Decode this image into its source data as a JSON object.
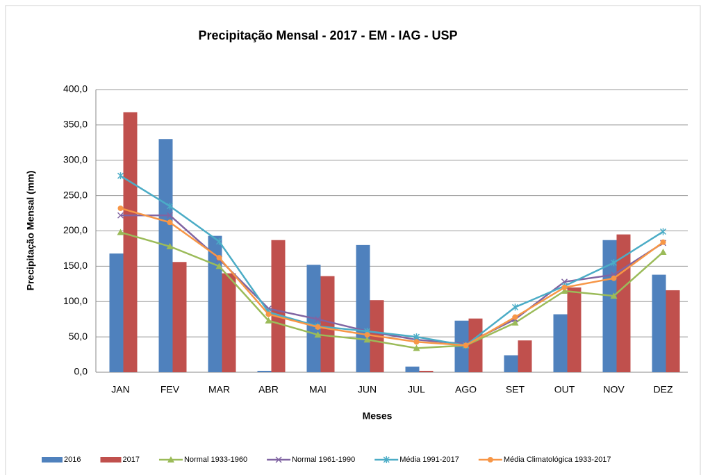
{
  "chart_data": {
    "type": "bar",
    "title": "Precipitação Mensal - 2017 - EM - IAG - USP",
    "x_label": "Meses",
    "y_label": "Precipitação Mensal (mm)",
    "categories": [
      "JAN",
      "FEV",
      "MAR",
      "ABR",
      "MAI",
      "JUN",
      "JUL",
      "AGO",
      "SET",
      "OUT",
      "NOV",
      "DEZ"
    ],
    "series": [
      {
        "name": "2016",
        "type": "bar",
        "color": "#4f81bd",
        "values": [
          168,
          330,
          193,
          2,
          152,
          180,
          8,
          73,
          24,
          82,
          187,
          138
        ]
      },
      {
        "name": "2017",
        "type": "bar",
        "color": "#c0504d",
        "values": [
          368,
          156,
          140,
          187,
          136,
          102,
          2,
          76,
          45,
          120,
          195,
          116
        ]
      },
      {
        "name": "Normal 1933-1960",
        "type": "line",
        "marker": "triangle",
        "color": "#9bbb59",
        "values": [
          198,
          178,
          150,
          73,
          53,
          46,
          34,
          38,
          70,
          115,
          108,
          170
        ]
      },
      {
        "name": "Normal 1961-1990",
        "type": "line",
        "marker": "x",
        "color": "#8064a2",
        "values": [
          222,
          222,
          160,
          90,
          75,
          58,
          46,
          40,
          75,
          128,
          138,
          183
        ]
      },
      {
        "name": "Média 1991-2017",
        "type": "line",
        "marker": "star",
        "color": "#4bacc6",
        "values": [
          278,
          235,
          185,
          85,
          65,
          58,
          50,
          38,
          92,
          122,
          155,
          199
        ]
      },
      {
        "name": "Média Climatológica 1933-2017",
        "type": "line",
        "marker": "circle",
        "color": "#f79646",
        "values": [
          232,
          212,
          162,
          82,
          64,
          53,
          43,
          38,
          78,
          120,
          133,
          184
        ]
      }
    ],
    "ylim": [
      0,
      400
    ],
    "yticks": [
      {
        "value": 0,
        "label": "0,0"
      },
      {
        "value": 50,
        "label": "50,0"
      },
      {
        "value": 100,
        "label": "100,0"
      },
      {
        "value": 150,
        "label": "150,0"
      },
      {
        "value": 200,
        "label": "200,0"
      },
      {
        "value": 250,
        "label": "250,0"
      },
      {
        "value": 300,
        "label": "300,0"
      },
      {
        "value": 350,
        "label": "350,0"
      },
      {
        "value": 400,
        "label": "400,0"
      }
    ],
    "grid": true,
    "legend": "bottom"
  }
}
